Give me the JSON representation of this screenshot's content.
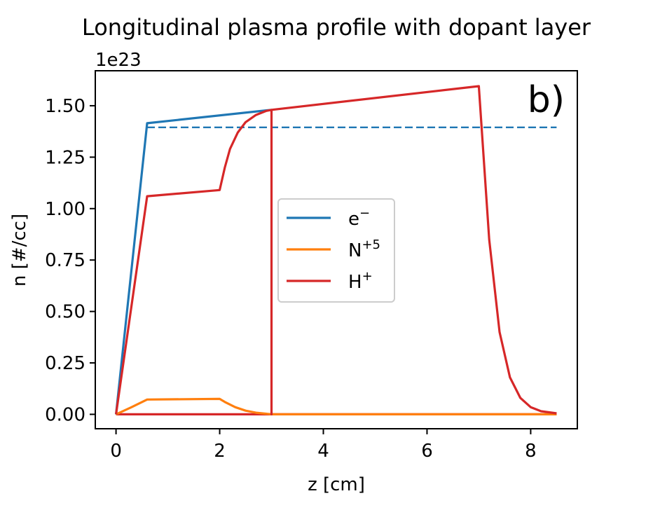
{
  "chart_data": {
    "type": "line",
    "title": "Longitudinal plasma profile with dopant layer",
    "xlabel": "z [cm]",
    "ylabel": "n [#/cc]",
    "y_offset_text": "1e23",
    "panel_label": "b)",
    "xlim": [
      -0.4,
      8.9
    ],
    "ylim": [
      -0.07,
      1.67
    ],
    "x_ticks": [
      0,
      2,
      4,
      6,
      8
    ],
    "x_tick_labels": [
      "0",
      "2",
      "4",
      "6",
      "8"
    ],
    "y_ticks": [
      0.0,
      0.25,
      0.5,
      0.75,
      1.0,
      1.25,
      1.5
    ],
    "y_tick_labels": [
      "0.00",
      "0.25",
      "0.50",
      "0.75",
      "1.00",
      "1.25",
      "1.50"
    ],
    "grid": false,
    "legend_position": "center",
    "series": [
      {
        "name": "e⁻",
        "color": "#1f77b4",
        "style": "solid",
        "in_legend": true,
        "x": [
          0,
          0.6,
          3.0
        ],
        "y": [
          0,
          1.415,
          1.48
        ]
      },
      {
        "name": "e⁻ reference",
        "color": "#1f77b4",
        "style": "dashed",
        "in_legend": false,
        "x": [
          0.6,
          8.5
        ],
        "y": [
          1.395,
          1.395
        ]
      },
      {
        "name": "N⁺⁵",
        "color": "#ff7f0e",
        "style": "solid",
        "in_legend": true,
        "x": [
          0,
          0.3,
          0.6,
          2.0,
          2.1,
          2.3,
          2.5,
          2.7,
          2.9,
          3.0,
          8.5
        ],
        "y": [
          0,
          0.035,
          0.072,
          0.075,
          0.06,
          0.035,
          0.018,
          0.008,
          0.003,
          0.0,
          0.0
        ]
      },
      {
        "name": "H⁺",
        "color": "#d62728",
        "style": "solid",
        "in_legend": true,
        "x": [
          0,
          0.6,
          2.0,
          2.1,
          2.2,
          2.35,
          2.5,
          2.7,
          2.9,
          3.0,
          3.0,
          3.0,
          7.0,
          7.2,
          7.4,
          7.6,
          7.8,
          8.0,
          8.2,
          8.5
        ],
        "y": [
          0,
          1.06,
          1.09,
          1.2,
          1.29,
          1.37,
          1.42,
          1.455,
          1.475,
          1.48,
          0.0,
          1.48,
          1.595,
          0.85,
          0.4,
          0.18,
          0.08,
          0.035,
          0.015,
          0.005
        ]
      },
      {
        "name": "H⁺ baseline",
        "color": "#d62728",
        "style": "solid",
        "in_legend": false,
        "x": [
          0,
          8.5
        ],
        "y": [
          0,
          0
        ]
      }
    ]
  },
  "legend": {
    "entries": [
      {
        "base": "e",
        "sup": "−",
        "color": "#1f77b4"
      },
      {
        "base": "N",
        "sup": "+5",
        "color": "#ff7f0e"
      },
      {
        "base": "H",
        "sup": "+",
        "color": "#d62728"
      }
    ]
  }
}
